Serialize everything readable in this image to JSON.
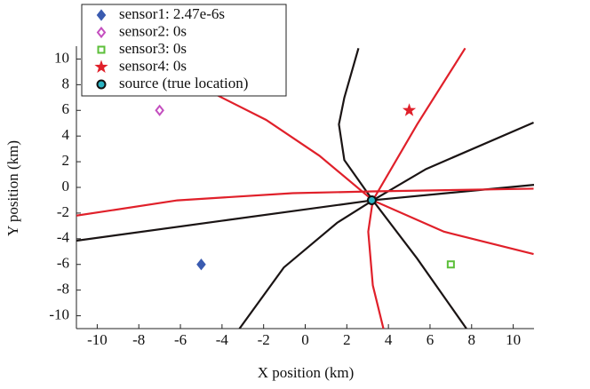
{
  "chart_data": {
    "type": "scatter",
    "xlabel": "X position (km)",
    "ylabel": "Y position (km)",
    "xlim": [
      -11,
      11
    ],
    "ylim": [
      -11,
      11
    ],
    "xticks": [
      -10,
      -8,
      -6,
      -4,
      -2,
      0,
      2,
      4,
      6,
      8,
      10
    ],
    "yticks": [
      -10,
      -8,
      -6,
      -4,
      -2,
      0,
      2,
      4,
      6,
      8,
      10
    ],
    "legend": "upper left",
    "series": [
      {
        "name": "sensor1: 2.47e-6s",
        "color": "#3a5bb0",
        "marker": "diamond-filled",
        "x": [
          -5
        ],
        "y": [
          -6
        ]
      },
      {
        "name": "sensor2: 0s",
        "color": "#c44fbf",
        "marker": "diamond-open",
        "x": [
          -7
        ],
        "y": [
          6
        ]
      },
      {
        "name": "sensor3: 0s",
        "color": "#5cbf3a",
        "marker": "square-open",
        "x": [
          7
        ],
        "y": [
          -6
        ]
      },
      {
        "name": "sensor4: 0s",
        "color": "#e0202a",
        "marker": "star",
        "x": [
          5
        ],
        "y": [
          6
        ]
      },
      {
        "name": "source (true location)",
        "color": "#2bb5c4",
        "marker": "circle",
        "x": [
          3.2
        ],
        "y": [
          -1
        ]
      }
    ],
    "curves": [
      {
        "color": "#1a1414",
        "x": [
          2.56,
          1.88,
          1.62,
          1.88,
          3.25,
          5.38,
          7.75
        ],
        "y": [
          10.84,
          6.99,
          4.91,
          2.13,
          -1.01,
          -5.54,
          -11
        ]
      },
      {
        "color": "#1a1414",
        "x": [
          -3.16,
          -1.03,
          1.54,
          3.25,
          5.81,
          10.98
        ],
        "y": [
          -11,
          -6.24,
          -2.75,
          -1.01,
          1.43,
          5.05
        ]
      },
      {
        "color": "#1a1414",
        "x": [
          -11,
          -4,
          3.25,
          11
        ],
        "y": [
          -4.15,
          -2.6,
          -1.0,
          0.2
        ]
      },
      {
        "color": "#e0202a",
        "x": [
          -4.87,
          -1.88,
          0.68,
          3.25,
          6.67,
          10.98
        ],
        "y": [
          7.7,
          5.26,
          2.47,
          -1.01,
          -3.45,
          -5.19
        ]
      },
      {
        "color": "#e0202a",
        "x": [
          7.69,
          5.38,
          3.25,
          3.03,
          3.25,
          3.76
        ],
        "y": [
          10.84,
          4.91,
          -1.01,
          -3.45,
          -7.63,
          -11
        ]
      },
      {
        "color": "#e0202a",
        "x": [
          -11,
          -6.15,
          -0.6,
          3.25,
          10.98
        ],
        "y": [
          -2.2,
          -1.01,
          -0.45,
          -0.31,
          -0.1
        ]
      }
    ]
  }
}
